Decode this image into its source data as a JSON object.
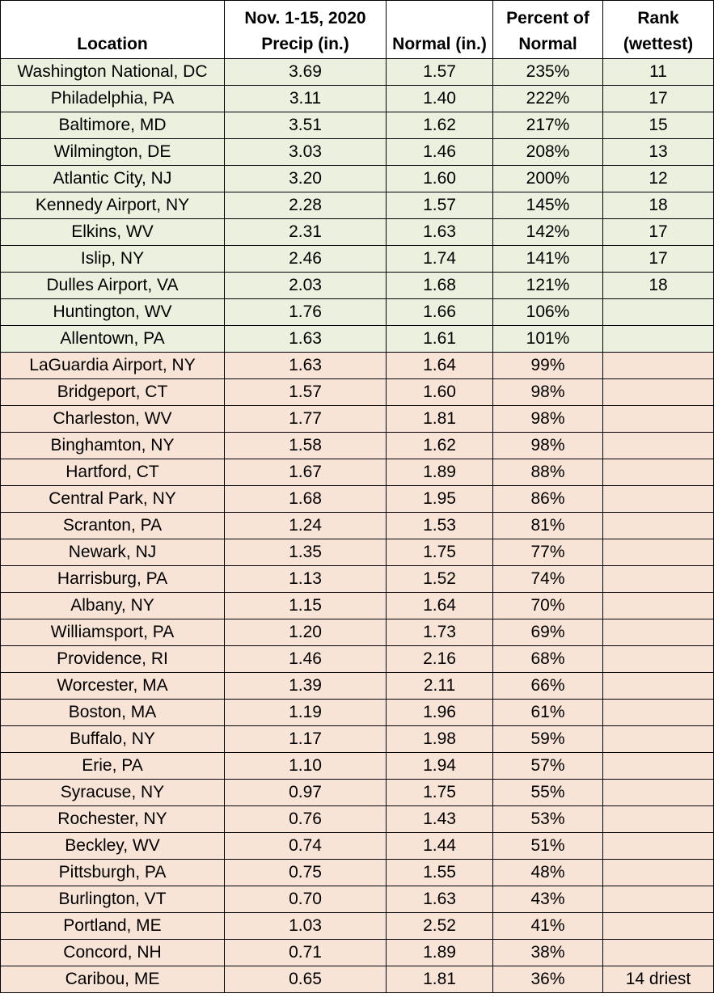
{
  "colors": {
    "above_normal_row": "#ebf1de",
    "below_normal_row": "#f8e4d6"
  },
  "headers": {
    "location": "Location",
    "precip_line1": "Nov. 1-15, 2020",
    "precip_line2": "Precip (in.)",
    "normal": "Normal (in.)",
    "percent_line1": "Percent of",
    "percent_line2": "Normal",
    "rank_line1": "Rank",
    "rank_line2": "(wettest)"
  },
  "rows": [
    {
      "location": "Washington National, DC",
      "precip": "3.69",
      "normal": "1.57",
      "percent": "235%",
      "rank": "11",
      "group": "wet"
    },
    {
      "location": "Philadelphia, PA",
      "precip": "3.11",
      "normal": "1.40",
      "percent": "222%",
      "rank": "17",
      "group": "wet"
    },
    {
      "location": "Baltimore, MD",
      "precip": "3.51",
      "normal": "1.62",
      "percent": "217%",
      "rank": "15",
      "group": "wet"
    },
    {
      "location": "Wilmington, DE",
      "precip": "3.03",
      "normal": "1.46",
      "percent": "208%",
      "rank": "13",
      "group": "wet"
    },
    {
      "location": "Atlantic City, NJ",
      "precip": "3.20",
      "normal": "1.60",
      "percent": "200%",
      "rank": "12",
      "group": "wet"
    },
    {
      "location": "Kennedy Airport, NY",
      "precip": "2.28",
      "normal": "1.57",
      "percent": "145%",
      "rank": "18",
      "group": "wet"
    },
    {
      "location": "Elkins, WV",
      "precip": "2.31",
      "normal": "1.63",
      "percent": "142%",
      "rank": "17",
      "group": "wet"
    },
    {
      "location": "Islip, NY",
      "precip": "2.46",
      "normal": "1.74",
      "percent": "141%",
      "rank": "17",
      "group": "wet"
    },
    {
      "location": "Dulles Airport, VA",
      "precip": "2.03",
      "normal": "1.68",
      "percent": "121%",
      "rank": "18",
      "group": "wet"
    },
    {
      "location": "Huntington, WV",
      "precip": "1.76",
      "normal": "1.66",
      "percent": "106%",
      "rank": "",
      "group": "wet"
    },
    {
      "location": "Allentown, PA",
      "precip": "1.63",
      "normal": "1.61",
      "percent": "101%",
      "rank": "",
      "group": "wet"
    },
    {
      "location": "LaGuardia Airport, NY",
      "precip": "1.63",
      "normal": "1.64",
      "percent": "99%",
      "rank": "",
      "group": "dry"
    },
    {
      "location": "Bridgeport, CT",
      "precip": "1.57",
      "normal": "1.60",
      "percent": "98%",
      "rank": "",
      "group": "dry"
    },
    {
      "location": "Charleston, WV",
      "precip": "1.77",
      "normal": "1.81",
      "percent": "98%",
      "rank": "",
      "group": "dry"
    },
    {
      "location": "Binghamton, NY",
      "precip": "1.58",
      "normal": "1.62",
      "percent": "98%",
      "rank": "",
      "group": "dry"
    },
    {
      "location": "Hartford, CT",
      "precip": "1.67",
      "normal": "1.89",
      "percent": "88%",
      "rank": "",
      "group": "dry"
    },
    {
      "location": "Central Park, NY",
      "precip": "1.68",
      "normal": "1.95",
      "percent": "86%",
      "rank": "",
      "group": "dry"
    },
    {
      "location": "Scranton, PA",
      "precip": "1.24",
      "normal": "1.53",
      "percent": "81%",
      "rank": "",
      "group": "dry"
    },
    {
      "location": "Newark, NJ",
      "precip": "1.35",
      "normal": "1.75",
      "percent": "77%",
      "rank": "",
      "group": "dry"
    },
    {
      "location": "Harrisburg, PA",
      "precip": "1.13",
      "normal": "1.52",
      "percent": "74%",
      "rank": "",
      "group": "dry"
    },
    {
      "location": "Albany, NY",
      "precip": "1.15",
      "normal": "1.64",
      "percent": "70%",
      "rank": "",
      "group": "dry"
    },
    {
      "location": "Williamsport, PA",
      "precip": "1.20",
      "normal": "1.73",
      "percent": "69%",
      "rank": "",
      "group": "dry"
    },
    {
      "location": "Providence, RI",
      "precip": "1.46",
      "normal": "2.16",
      "percent": "68%",
      "rank": "",
      "group": "dry"
    },
    {
      "location": "Worcester, MA",
      "precip": "1.39",
      "normal": "2.11",
      "percent": "66%",
      "rank": "",
      "group": "dry"
    },
    {
      "location": "Boston, MA",
      "precip": "1.19",
      "normal": "1.96",
      "percent": "61%",
      "rank": "",
      "group": "dry"
    },
    {
      "location": "Buffalo, NY",
      "precip": "1.17",
      "normal": "1.98",
      "percent": "59%",
      "rank": "",
      "group": "dry"
    },
    {
      "location": "Erie, PA",
      "precip": "1.10",
      "normal": "1.94",
      "percent": "57%",
      "rank": "",
      "group": "dry"
    },
    {
      "location": "Syracuse, NY",
      "precip": "0.97",
      "normal": "1.75",
      "percent": "55%",
      "rank": "",
      "group": "dry"
    },
    {
      "location": "Rochester, NY",
      "precip": "0.76",
      "normal": "1.43",
      "percent": "53%",
      "rank": "",
      "group": "dry"
    },
    {
      "location": "Beckley, WV",
      "precip": "0.74",
      "normal": "1.44",
      "percent": "51%",
      "rank": "",
      "group": "dry"
    },
    {
      "location": "Pittsburgh, PA",
      "precip": "0.75",
      "normal": "1.55",
      "percent": "48%",
      "rank": "",
      "group": "dry"
    },
    {
      "location": "Burlington, VT",
      "precip": "0.70",
      "normal": "1.63",
      "percent": "43%",
      "rank": "",
      "group": "dry"
    },
    {
      "location": "Portland, ME",
      "precip": "1.03",
      "normal": "2.52",
      "percent": "41%",
      "rank": "",
      "group": "dry"
    },
    {
      "location": "Concord, NH",
      "precip": "0.71",
      "normal": "1.89",
      "percent": "38%",
      "rank": "",
      "group": "dry"
    },
    {
      "location": "Caribou, ME",
      "precip": "0.65",
      "normal": "1.81",
      "percent": "36%",
      "rank": "14 driest",
      "group": "dry"
    }
  ]
}
